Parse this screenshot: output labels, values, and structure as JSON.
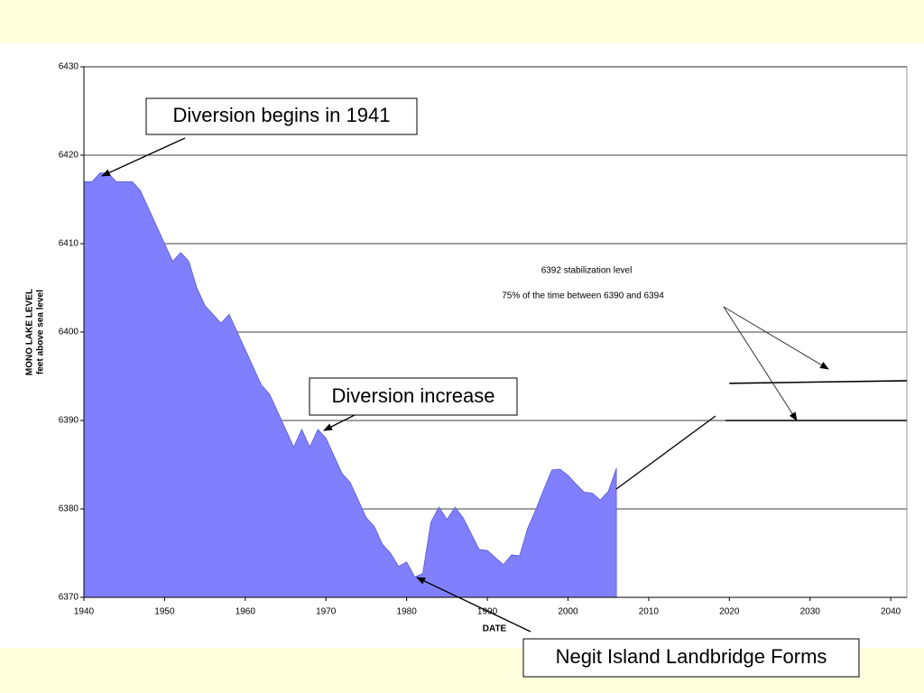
{
  "chart_data": {
    "type": "area",
    "x_label": "DATE",
    "y_label": [
      "MONO LAKE LEVEL",
      "feet above sea level"
    ],
    "x": [
      1940,
      1941,
      1942,
      1943,
      1944,
      1945,
      1946,
      1947,
      1948,
      1949,
      1950,
      1951,
      1952,
      1953,
      1954,
      1955,
      1956,
      1957,
      1958,
      1959,
      1960,
      1961,
      1962,
      1963,
      1964,
      1965,
      1966,
      1967,
      1968,
      1969,
      1970,
      1971,
      1972,
      1973,
      1974,
      1975,
      1976,
      1977,
      1978,
      1979,
      1980,
      1981,
      1982,
      1983,
      1984,
      1985,
      1986,
      1987,
      1988,
      1989,
      1990,
      1991,
      1992,
      1993,
      1994,
      1995,
      1996,
      1997,
      1998,
      1999,
      2000,
      2001,
      2002,
      2003,
      2004,
      2005,
      2006
    ],
    "values": [
      6417,
      6417,
      6418,
      6418,
      6417,
      6417,
      6417,
      6416,
      6414,
      6412,
      6410,
      6408,
      6409,
      6408,
      6405,
      6403,
      6402,
      6401,
      6402,
      6400,
      6398,
      6396,
      6394,
      6393,
      6391,
      6389,
      6387,
      6389,
      6387,
      6389,
      6388,
      6386,
      6384,
      6383,
      6381,
      6379,
      6378,
      6376,
      6375,
      6373.5,
      6374,
      6372.3,
      6372.7,
      6378.5,
      6380.2,
      6378.8,
      6380.2,
      6379,
      6377.2,
      6375.4,
      6375.3,
      6374.5,
      6373.7,
      6374.8,
      6374.7,
      6377.8,
      6379.9,
      6382.2,
      6384.4,
      6384.5,
      6383.8,
      6382.8,
      6381.9,
      6381.8,
      6381,
      6382,
      6384.6
    ],
    "color": "#8080ff",
    "reference_lines": [
      {
        "x": [
          2020,
          2042
        ],
        "values": [
          6394.2,
          6394.5
        ],
        "color": "#000000"
      },
      {
        "x": [
          2019.5,
          2042
        ],
        "values": [
          6390,
          6390
        ],
        "color": "#000000"
      }
    ],
    "xlim": [
      1940,
      2042
    ],
    "ylim": [
      6370,
      6430
    ],
    "xticks": [
      1940,
      1950,
      1960,
      1970,
      1980,
      1990,
      2000,
      2010,
      2020,
      2030,
      2040
    ],
    "yticks": [
      6370,
      6380,
      6390,
      6400,
      6410,
      6420,
      6430
    ],
    "grid": true,
    "annotations": [
      "Diversion begins in 1941",
      "Diversion increase",
      "Negit Island Landbridge Forms",
      "6392 stabilization level",
      "75% of the time between 6390 and 6394"
    ]
  }
}
